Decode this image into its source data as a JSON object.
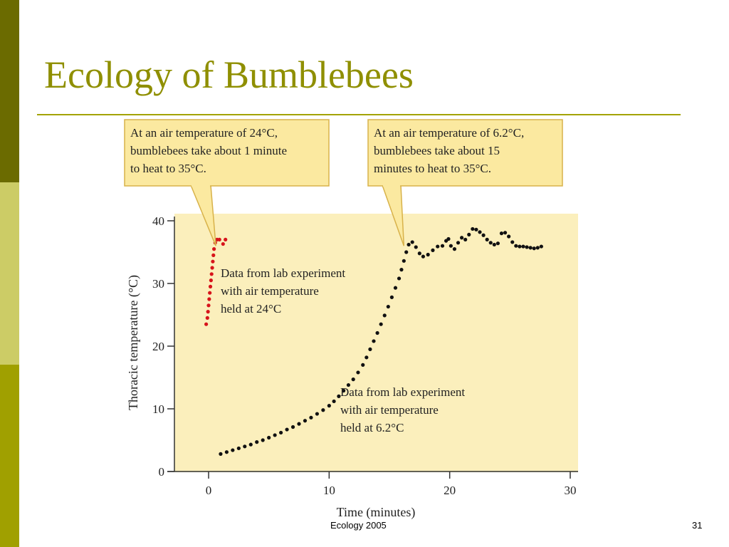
{
  "slide": {
    "title": "Ecology of Bumblebees",
    "footer": "Ecology 2005",
    "page_number": "31"
  },
  "colors": {
    "accent": "#8f8f00",
    "sidebar_dark": "#6b6b00",
    "sidebar_light": "#cccc66",
    "sidebar_mid": "#a0a000",
    "plot_background": "#fbefbc",
    "callout_border": "#d8b24a",
    "series_24": "#d7141b",
    "series_6_2": "#111111"
  },
  "chart_data": {
    "type": "scatter",
    "title": "",
    "xlabel": "Time (minutes)",
    "ylabel": "Thoracic temperature (°C)",
    "xlim": [
      -3,
      31
    ],
    "ylim": [
      0,
      41
    ],
    "xticks": [
      0,
      10,
      20,
      30
    ],
    "yticks": [
      0,
      10,
      20,
      30,
      40
    ],
    "grid": false,
    "series": [
      {
        "name": "Data from lab experiment with air temperature held at 24°C",
        "label_lines": [
          "Data from lab experiment",
          "with air temperature",
          "held at 24°C"
        ],
        "color": "#d7141b",
        "points": [
          [
            -0.2,
            23.5
          ],
          [
            -0.1,
            24.5
          ],
          [
            -0.05,
            25.5
          ],
          [
            0.0,
            26.5
          ],
          [
            0.05,
            27.5
          ],
          [
            0.1,
            28.5
          ],
          [
            0.15,
            29.5
          ],
          [
            0.2,
            30.5
          ],
          [
            0.25,
            31.5
          ],
          [
            0.3,
            32.5
          ],
          [
            0.35,
            33.5
          ],
          [
            0.4,
            34.5
          ],
          [
            0.45,
            35.5
          ],
          [
            0.55,
            36.5
          ],
          [
            0.7,
            37.0
          ],
          [
            0.9,
            37.0
          ],
          [
            1.2,
            36.3
          ],
          [
            1.4,
            37.0
          ]
        ]
      },
      {
        "name": "Data from lab experiment with air temperature held at 6.2°C",
        "label_lines": [
          "Data from lab experiment",
          "with air temperature",
          "held at 6.2°C"
        ],
        "color": "#111111",
        "points": [
          [
            1.0,
            2.8
          ],
          [
            1.5,
            3.1
          ],
          [
            2.0,
            3.4
          ],
          [
            2.5,
            3.7
          ],
          [
            3.0,
            4.0
          ],
          [
            3.5,
            4.3
          ],
          [
            4.0,
            4.7
          ],
          [
            4.5,
            5.0
          ],
          [
            5.0,
            5.4
          ],
          [
            5.5,
            5.8
          ],
          [
            6.0,
            6.2
          ],
          [
            6.5,
            6.7
          ],
          [
            7.0,
            7.1
          ],
          [
            7.5,
            7.6
          ],
          [
            8.0,
            8.1
          ],
          [
            8.5,
            8.6
          ],
          [
            9.0,
            9.2
          ],
          [
            9.5,
            9.8
          ],
          [
            10.0,
            10.5
          ],
          [
            10.4,
            11.2
          ],
          [
            10.8,
            12.0
          ],
          [
            11.2,
            12.9
          ],
          [
            11.6,
            13.8
          ],
          [
            12.0,
            14.7
          ],
          [
            12.4,
            15.8
          ],
          [
            12.8,
            17.0
          ],
          [
            13.1,
            18.2
          ],
          [
            13.4,
            19.5
          ],
          [
            13.7,
            20.8
          ],
          [
            14.0,
            22.1
          ],
          [
            14.3,
            23.5
          ],
          [
            14.6,
            24.9
          ],
          [
            14.9,
            26.3
          ],
          [
            15.2,
            27.8
          ],
          [
            15.5,
            29.3
          ],
          [
            15.8,
            30.8
          ],
          [
            16.0,
            32.2
          ],
          [
            16.2,
            33.6
          ],
          [
            16.4,
            35.0
          ],
          [
            16.6,
            36.2
          ],
          [
            16.9,
            36.6
          ],
          [
            17.2,
            35.8
          ],
          [
            17.5,
            34.8
          ],
          [
            17.8,
            34.3
          ],
          [
            18.2,
            34.6
          ],
          [
            18.6,
            35.3
          ],
          [
            19.0,
            35.9
          ],
          [
            19.4,
            36.0
          ],
          [
            19.7,
            36.8
          ],
          [
            19.9,
            37.1
          ],
          [
            20.1,
            36.0
          ],
          [
            20.4,
            35.5
          ],
          [
            20.7,
            36.5
          ],
          [
            21.0,
            37.3
          ],
          [
            21.3,
            37.0
          ],
          [
            21.6,
            37.8
          ],
          [
            21.9,
            38.7
          ],
          [
            22.2,
            38.6
          ],
          [
            22.5,
            38.2
          ],
          [
            22.8,
            37.7
          ],
          [
            23.1,
            37.0
          ],
          [
            23.4,
            36.5
          ],
          [
            23.7,
            36.2
          ],
          [
            24.0,
            36.4
          ],
          [
            24.3,
            38.0
          ],
          [
            24.6,
            38.1
          ],
          [
            24.9,
            37.5
          ],
          [
            25.2,
            36.6
          ],
          [
            25.5,
            36.0
          ],
          [
            25.8,
            35.9
          ],
          [
            26.1,
            35.9
          ],
          [
            26.4,
            35.8
          ],
          [
            26.7,
            35.7
          ],
          [
            27.0,
            35.6
          ],
          [
            27.3,
            35.7
          ],
          [
            27.6,
            35.9
          ]
        ]
      }
    ],
    "callouts": [
      {
        "lines": [
          "At an air temperature of 24°C,",
          "bumblebees take about 1 minute",
          "to heat to 35°C."
        ],
        "points_to": [
          0.6,
          36.0
        ]
      },
      {
        "lines": [
          "At an air temperature of 6.2°C,",
          "bumblebees take about 15",
          "minutes to heat to 35°C."
        ],
        "points_to": [
          16.2,
          36.0
        ]
      }
    ]
  }
}
